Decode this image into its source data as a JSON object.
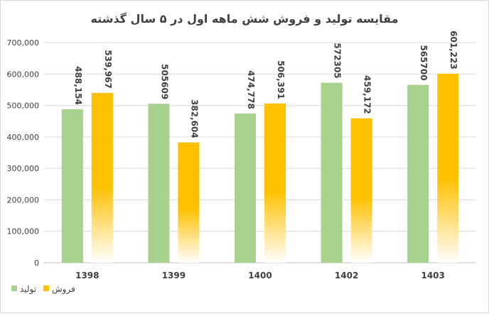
{
  "chart_data": {
    "type": "bar",
    "title": "مقایسه تولید و فروش شش ماهه اول در ۵ سال گذشته",
    "categories": [
      "1398",
      "1399",
      "1400",
      "1402",
      "1403"
    ],
    "series": [
      {
        "name": "تولید",
        "values": [
          488154,
          505609,
          474778,
          572305,
          565700
        ],
        "labels": [
          "488,154",
          "505609",
          "474,778",
          "572305",
          "565700"
        ],
        "color": "#a9d18e"
      },
      {
        "name": "فروش",
        "values": [
          539967,
          382604,
          506391,
          459172,
          601223
        ],
        "labels": [
          "539,967",
          "382,604",
          "506,391",
          "459,172",
          "601,223"
        ],
        "color": "#ffc000"
      }
    ],
    "ylim": [
      0,
      700000
    ],
    "ytick_labels": [
      "0",
      "100,000",
      "200,000",
      "300,000",
      "400,000",
      "500,000",
      "600,000",
      "700,000"
    ],
    "grid": true,
    "legend_position": "bottom-left",
    "xlabel": "",
    "ylabel": ""
  }
}
